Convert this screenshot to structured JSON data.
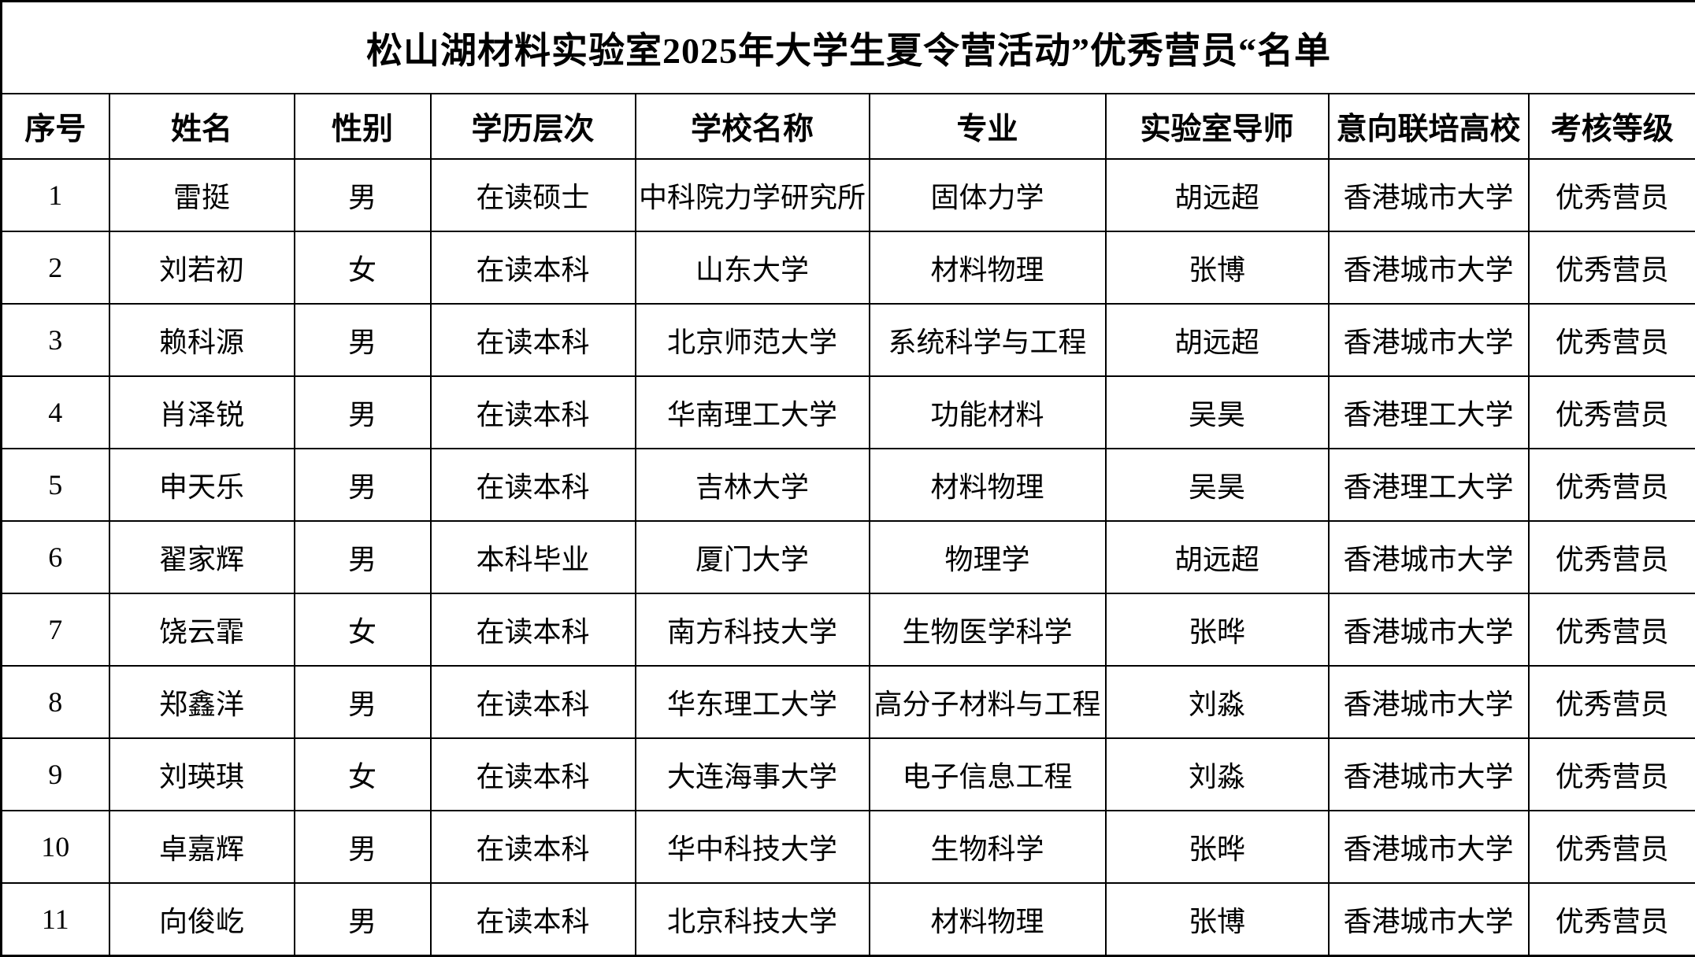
{
  "title": "松山湖材料实验室2025年大学生夏令营活动”优秀营员“名单",
  "colors": {
    "background": "#ffffff",
    "grid_line": "#000000",
    "text": "#000000"
  },
  "table": {
    "headers": [
      "序号",
      "姓名",
      "性别",
      "学历层次",
      "学校名称",
      "专业",
      "实验室导师",
      "意向联培高校",
      "考核等级"
    ],
    "column_keys": [
      "index",
      "name",
      "gender",
      "education-level",
      "school-name",
      "major",
      "lab-mentor",
      "intended-joint-university",
      "assessment-grade"
    ],
    "rows": [
      [
        "1",
        "雷挺",
        "男",
        "在读硕士",
        "中科院力学研究所",
        "固体力学",
        "胡远超",
        "香港城市大学",
        "优秀营员"
      ],
      [
        "2",
        "刘若初",
        "女",
        "在读本科",
        "山东大学",
        "材料物理",
        "张博",
        "香港城市大学",
        "优秀营员"
      ],
      [
        "3",
        "赖科源",
        "男",
        "在读本科",
        "北京师范大学",
        "系统科学与工程",
        "胡远超",
        "香港城市大学",
        "优秀营员"
      ],
      [
        "4",
        "肖泽锐",
        "男",
        "在读本科",
        "华南理工大学",
        "功能材料",
        "吴昊",
        "香港理工大学",
        "优秀营员"
      ],
      [
        "5",
        "申天乐",
        "男",
        "在读本科",
        "吉林大学",
        "材料物理",
        "吴昊",
        "香港理工大学",
        "优秀营员"
      ],
      [
        "6",
        "翟家辉",
        "男",
        "本科毕业",
        "厦门大学",
        "物理学",
        "胡远超",
        "香港城市大学",
        "优秀营员"
      ],
      [
        "7",
        "饶云霏",
        "女",
        "在读本科",
        "南方科技大学",
        "生物医学科学",
        "张晔",
        "香港城市大学",
        "优秀营员"
      ],
      [
        "8",
        "郑鑫洋",
        "男",
        "在读本科",
        "华东理工大学",
        "高分子材料与工程",
        "刘淼",
        "香港城市大学",
        "优秀营员"
      ],
      [
        "9",
        "刘瑛琪",
        "女",
        "在读本科",
        "大连海事大学",
        "电子信息工程",
        "刘淼",
        "香港城市大学",
        "优秀营员"
      ],
      [
        "10",
        "卓嘉辉",
        "男",
        "在读本科",
        "华中科技大学",
        "生物科学",
        "张晔",
        "香港城市大学",
        "优秀营员"
      ],
      [
        "11",
        "向俊屹",
        "男",
        "在读本科",
        "北京科技大学",
        "材料物理",
        "张博",
        "香港城市大学",
        "优秀营员"
      ]
    ]
  }
}
